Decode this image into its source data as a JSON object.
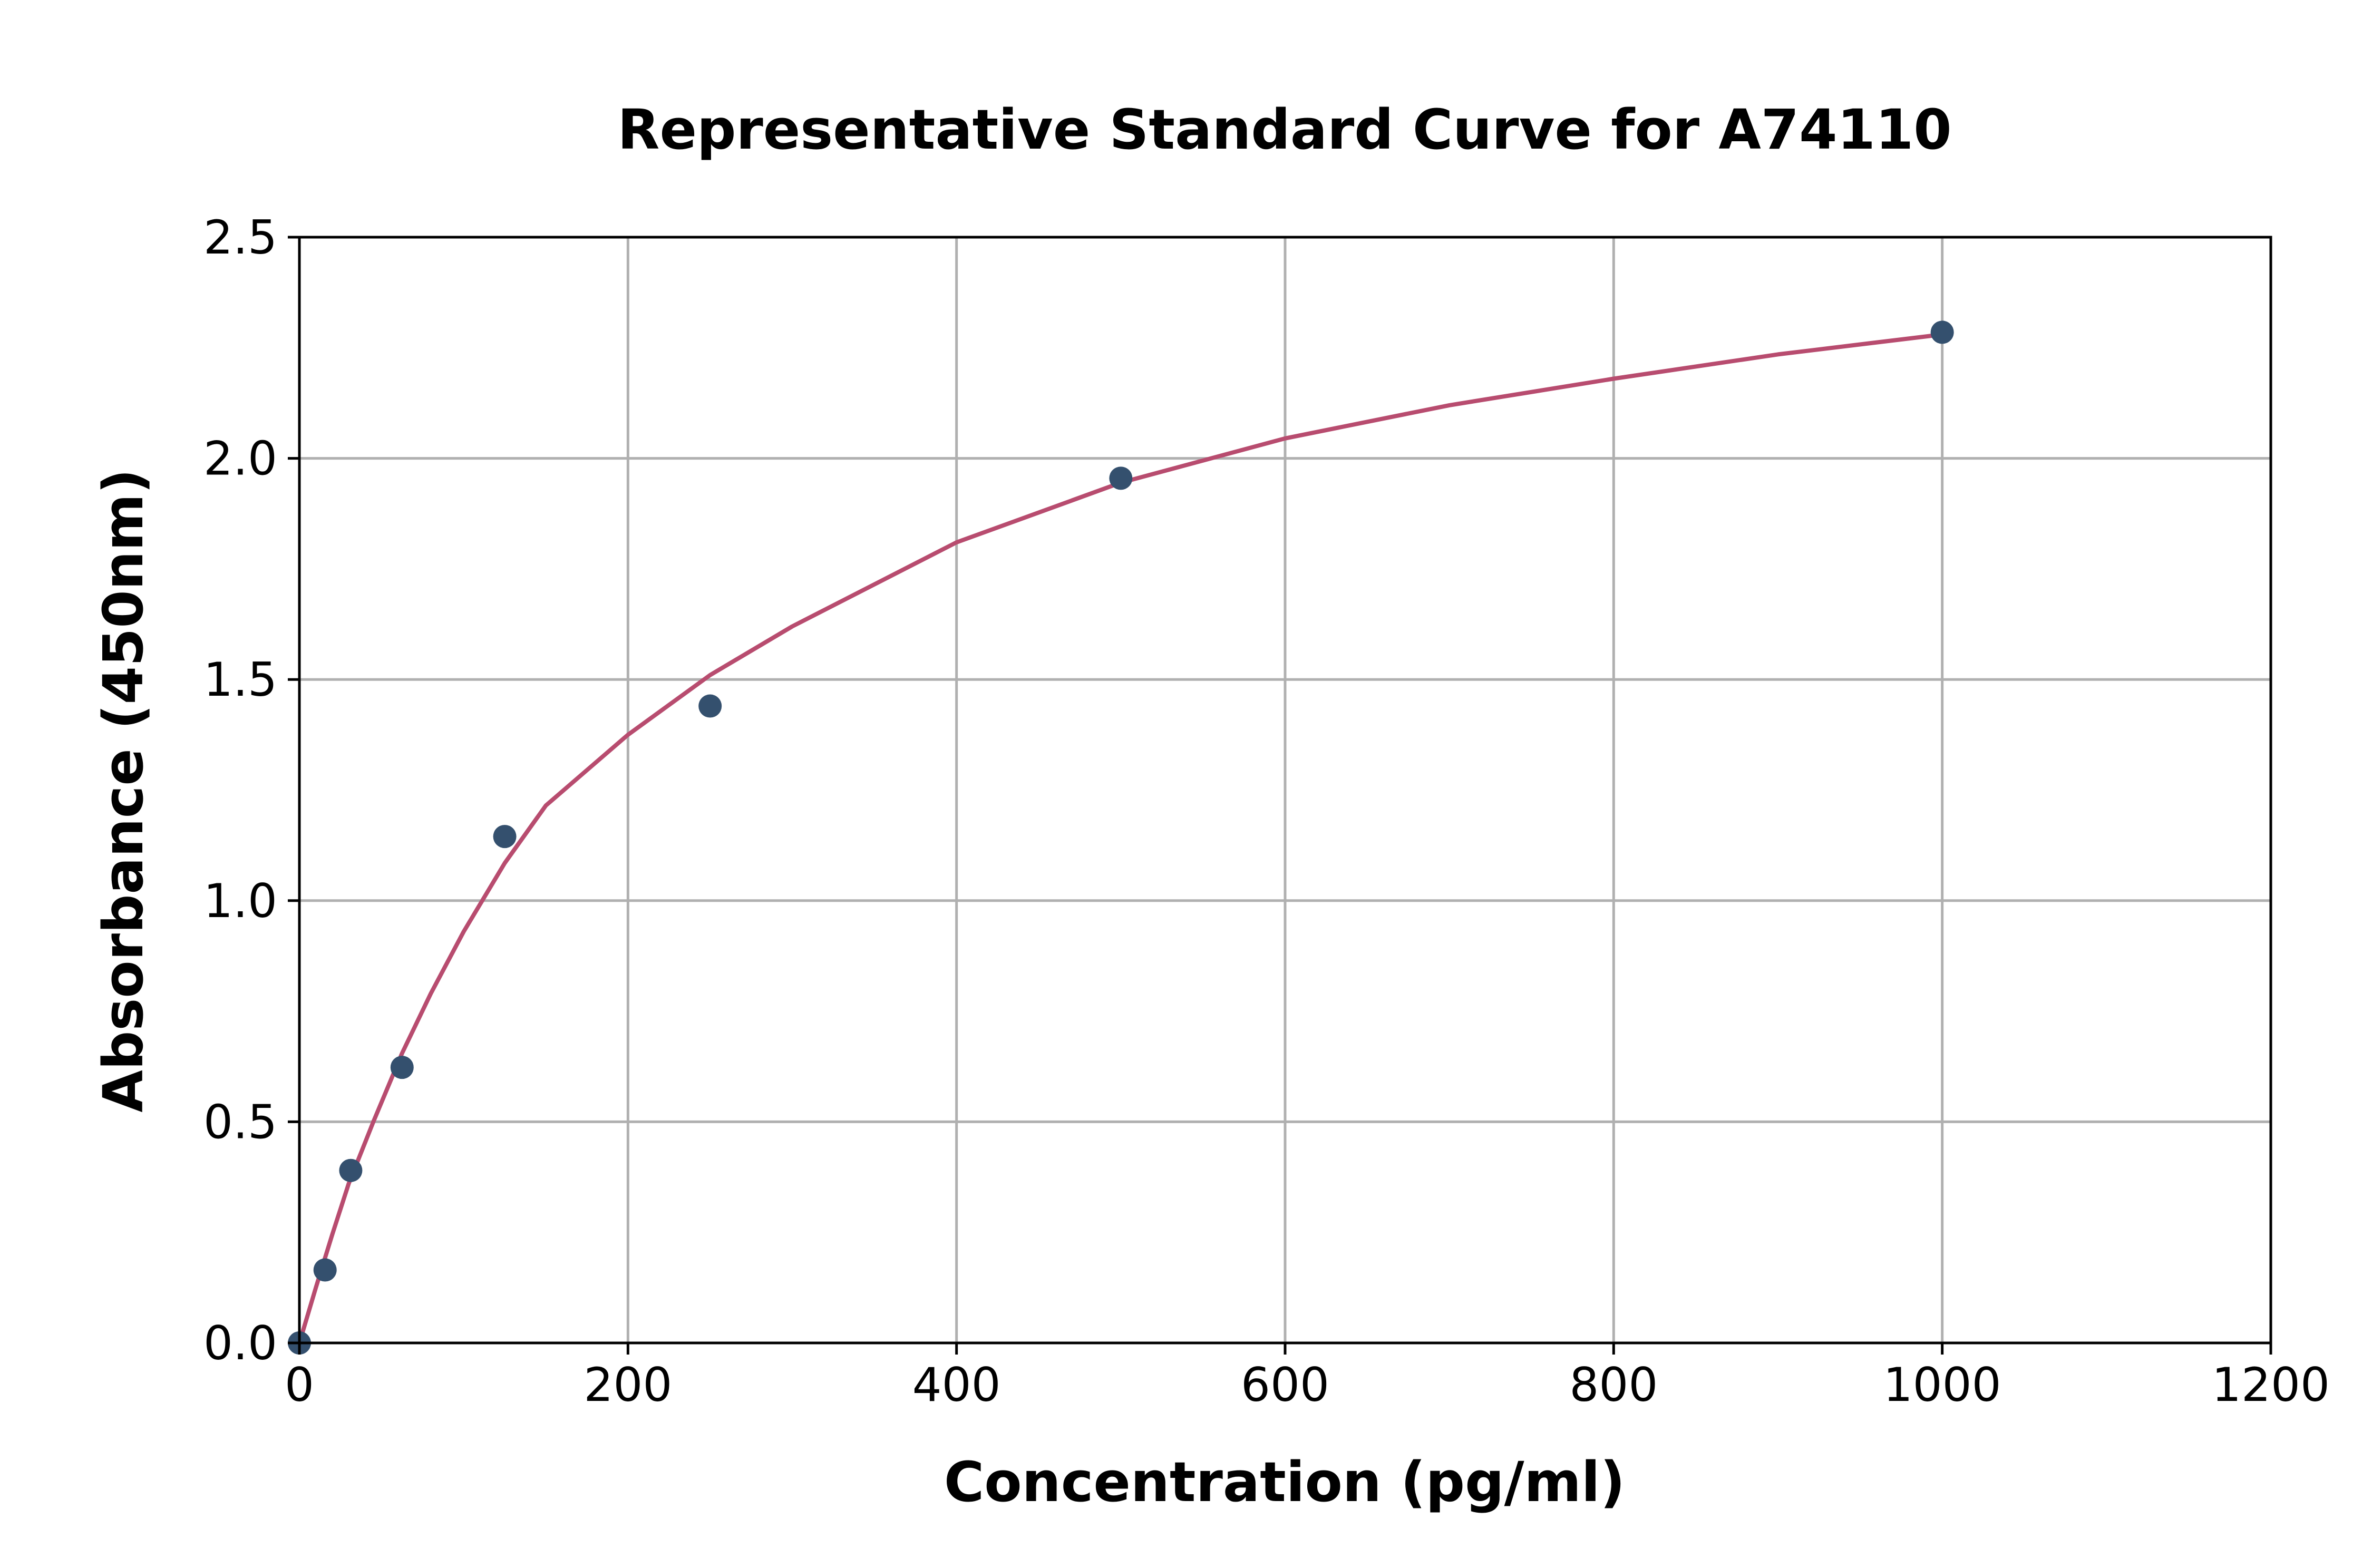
{
  "chart_data": {
    "type": "scatter",
    "title": "Representative Standard Curve for A74110",
    "xlabel": "Concentration (pg/ml)",
    "ylabel": "Absorbance (450nm)",
    "xlim": [
      0,
      1200
    ],
    "ylim": [
      0,
      2.5
    ],
    "x_ticks": [
      0,
      200,
      400,
      600,
      800,
      1000,
      1200
    ],
    "y_ticks": [
      0,
      0.5,
      1.0,
      1.5,
      2.0,
      2.5
    ],
    "x_tick_labels": [
      "0",
      "200",
      "400",
      "600",
      "800",
      "1000",
      "1200"
    ],
    "y_tick_labels": [
      "0.0",
      "0.5",
      "1.0",
      "1.5",
      "2.0",
      "2.5"
    ],
    "grid": true,
    "points": {
      "x": [
        0,
        15.625,
        31.25,
        62.5,
        125,
        250,
        500,
        1000
      ],
      "y": [
        0.0,
        0.165,
        0.39,
        0.623,
        1.145,
        1.44,
        1.955,
        2.285
      ]
    },
    "fit_curve": {
      "x": [
        0,
        10,
        20,
        30,
        45,
        62.5,
        80,
        100,
        125,
        150,
        200,
        250,
        300,
        400,
        500,
        600,
        700,
        800,
        900,
        1000
      ],
      "y": [
        0.0,
        0.125,
        0.245,
        0.36,
        0.5,
        0.655,
        0.79,
        0.93,
        1.085,
        1.215,
        1.375,
        1.51,
        1.62,
        1.81,
        1.945,
        2.045,
        2.12,
        2.18,
        2.235,
        2.28
      ]
    },
    "colors": {
      "points": "#34506e",
      "curve": "#b84c6f",
      "grid": "#b0b0b0",
      "axes": "#000000"
    }
  }
}
